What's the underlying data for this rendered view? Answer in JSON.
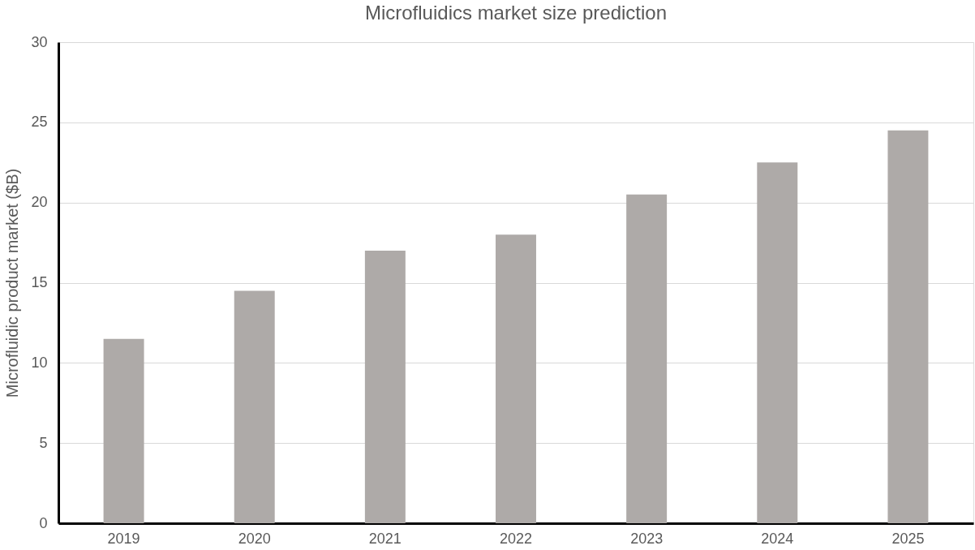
{
  "chart_data": {
    "type": "bar",
    "title": "Microfluidics market size prediction",
    "ylabel": "Microfluidic product market ($B)",
    "categories": [
      "2019",
      "2020",
      "2021",
      "2022",
      "2023",
      "2024",
      "2025"
    ],
    "values": [
      11.5,
      14.5,
      17,
      18,
      20.5,
      22.5,
      24.5
    ],
    "color": "#aeaaa8",
    "ylim": [
      0,
      30
    ],
    "yticks": [
      0,
      5,
      10,
      15,
      20,
      25,
      30
    ],
    "grid": "y"
  }
}
